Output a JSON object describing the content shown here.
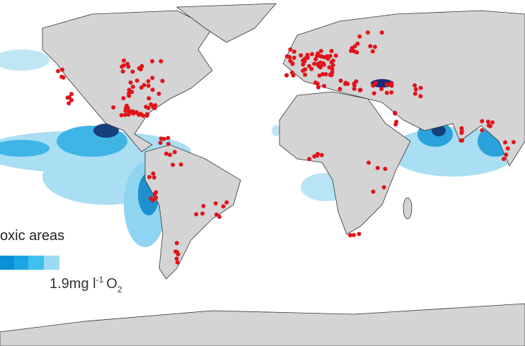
{
  "legend": {
    "title": "oxic areas",
    "label": "1.9mg l",
    "label_sup": "-1",
    "label_unit": "O",
    "label_sub": "2"
  }
}
